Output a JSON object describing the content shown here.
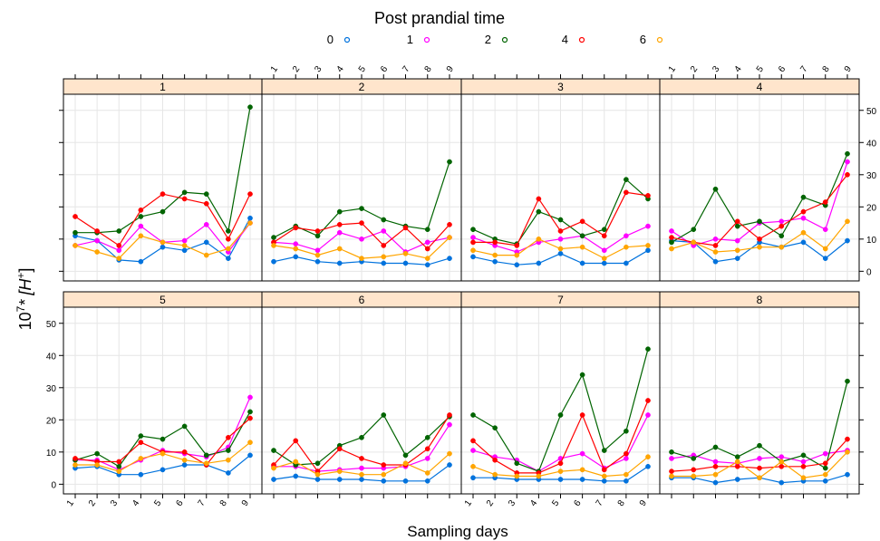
{
  "chart_data": {
    "type": "line",
    "legend": {
      "title": "Post prandial time",
      "placement": "top",
      "entries": [
        {
          "label": "0",
          "color": "#0072dd"
        },
        {
          "label": "1",
          "color": "#ff00ff"
        },
        {
          "label": "2",
          "color": "#006400"
        },
        {
          "label": "4",
          "color": "#ff0000"
        },
        {
          "label": "6",
          "color": "#ffa500"
        }
      ]
    },
    "ylabel": "10",
    "ylabel_sup": "7",
    "ylabel_rest": "* [H",
    "ylabel_sup2": "+",
    "ylabel_end": "]",
    "xlabel": "Sampling days",
    "x": [
      1,
      2,
      3,
      4,
      5,
      6,
      7,
      8,
      9
    ],
    "ylim": [
      -3,
      55
    ],
    "yticks": [
      0,
      10,
      20,
      30,
      40,
      50
    ],
    "grid": true,
    "panels": [
      {
        "strip": "1",
        "series": [
          {
            "name": "0",
            "values": [
              11,
              9.5,
              3.5,
              3,
              7.5,
              6.5,
              9,
              4,
              16.5
            ]
          },
          {
            "name": "1",
            "values": [
              8,
              9.5,
              6.5,
              14,
              9,
              9.5,
              14.5,
              6,
              15
            ]
          },
          {
            "name": "2",
            "values": [
              12,
              12,
              12.5,
              17,
              18.5,
              24.5,
              24,
              12.5,
              51
            ]
          },
          {
            "name": "4",
            "values": [
              17,
              12.5,
              8,
              19,
              24,
              22.5,
              21,
              10,
              24
            ]
          },
          {
            "name": "6",
            "values": [
              8,
              6,
              4,
              11,
              9,
              8,
              5,
              7,
              15
            ]
          }
        ]
      },
      {
        "strip": "2",
        "series": [
          {
            "name": "0",
            "values": [
              3,
              4.5,
              3,
              2.5,
              3,
              2.5,
              2.5,
              2,
              4
            ]
          },
          {
            "name": "1",
            "values": [
              9,
              8.5,
              6.5,
              12,
              10,
              12.5,
              6,
              9,
              10.5
            ]
          },
          {
            "name": "2",
            "values": [
              10.5,
              14,
              11,
              18.5,
              19.5,
              16,
              14,
              13,
              34
            ]
          },
          {
            "name": "4",
            "values": [
              9,
              13.5,
              12.5,
              14.5,
              15,
              8,
              13.5,
              7,
              14.5
            ]
          },
          {
            "name": "6",
            "values": [
              8,
              7,
              5,
              7,
              4,
              4.5,
              5.5,
              4,
              10.5
            ]
          }
        ]
      },
      {
        "strip": "3",
        "series": [
          {
            "name": "0",
            "values": [
              4.5,
              3,
              2,
              2.5,
              5.5,
              2.5,
              2.5,
              2.5,
              6.5
            ]
          },
          {
            "name": "1",
            "values": [
              10.5,
              8,
              6,
              9,
              10,
              11,
              6.5,
              11,
              14
            ]
          },
          {
            "name": "2",
            "values": [
              13,
              10,
              8.5,
              18.5,
              16,
              11,
              13,
              28.5,
              22.5
            ]
          },
          {
            "name": "4",
            "values": [
              9,
              9,
              8,
              22.5,
              12.5,
              15.5,
              11,
              24.5,
              23.5
            ]
          },
          {
            "name": "6",
            "values": [
              6.5,
              5,
              5,
              10,
              7,
              7.5,
              4,
              7.5,
              8
            ]
          }
        ]
      },
      {
        "strip": "4",
        "series": [
          {
            "name": "0",
            "values": [
              9.5,
              9,
              3,
              4,
              9,
              7.5,
              9,
              4,
              9.5
            ]
          },
          {
            "name": "1",
            "values": [
              12.5,
              8,
              10,
              9.5,
              15,
              15.5,
              16.5,
              13,
              34
            ]
          },
          {
            "name": "2",
            "values": [
              9,
              13,
              25.5,
              14,
              15.5,
              11,
              23,
              20.5,
              36.5
            ]
          },
          {
            "name": "4",
            "values": [
              10.5,
              9,
              8,
              15.5,
              10,
              14,
              18.5,
              21.5,
              30
            ]
          },
          {
            "name": "6",
            "values": [
              7,
              9,
              6,
              6.5,
              7.5,
              7.5,
              12,
              7,
              15.5
            ]
          }
        ]
      },
      {
        "strip": "5",
        "series": [
          {
            "name": "0",
            "values": [
              5,
              5.5,
              3,
              3,
              4.5,
              6,
              6,
              3.5,
              9
            ]
          },
          {
            "name": "1",
            "values": [
              7.5,
              7.5,
              4.5,
              7.5,
              10.5,
              9.5,
              8.5,
              11.5,
              27
            ]
          },
          {
            "name": "2",
            "values": [
              7.5,
              9.5,
              5.5,
              15,
              14,
              18,
              9,
              10.5,
              22.5
            ]
          },
          {
            "name": "4",
            "values": [
              8,
              7,
              7,
              13,
              10,
              10,
              6,
              14.5,
              20.5
            ]
          },
          {
            "name": "6",
            "values": [
              6,
              6,
              4,
              8,
              9.5,
              7.5,
              6.5,
              7.5,
              13
            ]
          }
        ]
      },
      {
        "strip": "6",
        "series": [
          {
            "name": "0",
            "values": [
              1.5,
              2.5,
              1.5,
              1.5,
              1.5,
              1,
              1,
              1,
              6
            ]
          },
          {
            "name": "1",
            "values": [
              5.5,
              5.5,
              4,
              4.5,
              5,
              5,
              5.5,
              8,
              18.5
            ]
          },
          {
            "name": "2",
            "values": [
              10.5,
              6,
              6.5,
              12,
              14.5,
              21.5,
              9,
              14.5,
              21
            ]
          },
          {
            "name": "4",
            "values": [
              6,
              13.5,
              4,
              11,
              8,
              6,
              6,
              11,
              21.5
            ]
          },
          {
            "name": "6",
            "values": [
              5,
              7,
              3,
              4,
              3,
              3,
              6.5,
              3.5,
              9.5
            ]
          }
        ]
      },
      {
        "strip": "7",
        "series": [
          {
            "name": "0",
            "values": [
              2,
              2,
              1.5,
              1.5,
              1.5,
              1.5,
              1,
              1,
              5.5
            ]
          },
          {
            "name": "1",
            "values": [
              10.5,
              8.5,
              7.5,
              4,
              8,
              9.5,
              5,
              8,
              21.5
            ]
          },
          {
            "name": "2",
            "values": [
              21.5,
              17.5,
              6.5,
              4,
              21.5,
              34,
              10.5,
              16.5,
              42
            ]
          },
          {
            "name": "4",
            "values": [
              13.5,
              7.5,
              3.5,
              3.5,
              6.5,
              21.5,
              4.5,
              9.5,
              26
            ]
          },
          {
            "name": "6",
            "values": [
              5.5,
              3,
              2.5,
              2.5,
              4,
              4.5,
              2.5,
              3,
              8.5
            ]
          }
        ]
      },
      {
        "strip": "8",
        "series": [
          {
            "name": "0",
            "values": [
              2,
              2,
              0.5,
              1.5,
              2,
              0.5,
              1,
              1,
              3
            ]
          },
          {
            "name": "1",
            "values": [
              8,
              9,
              7,
              6.5,
              8,
              8.5,
              7,
              9.5,
              10.5
            ]
          },
          {
            "name": "2",
            "values": [
              10,
              8,
              11.5,
              8.5,
              12,
              7,
              9,
              5,
              32
            ]
          },
          {
            "name": "4",
            "values": [
              4,
              4.5,
              5.5,
              5.5,
              5,
              5.5,
              5.5,
              6.5,
              14
            ]
          },
          {
            "name": "6",
            "values": [
              2.5,
              2.5,
              3,
              7,
              2,
              7,
              2,
              3,
              10
            ]
          }
        ]
      }
    ]
  }
}
